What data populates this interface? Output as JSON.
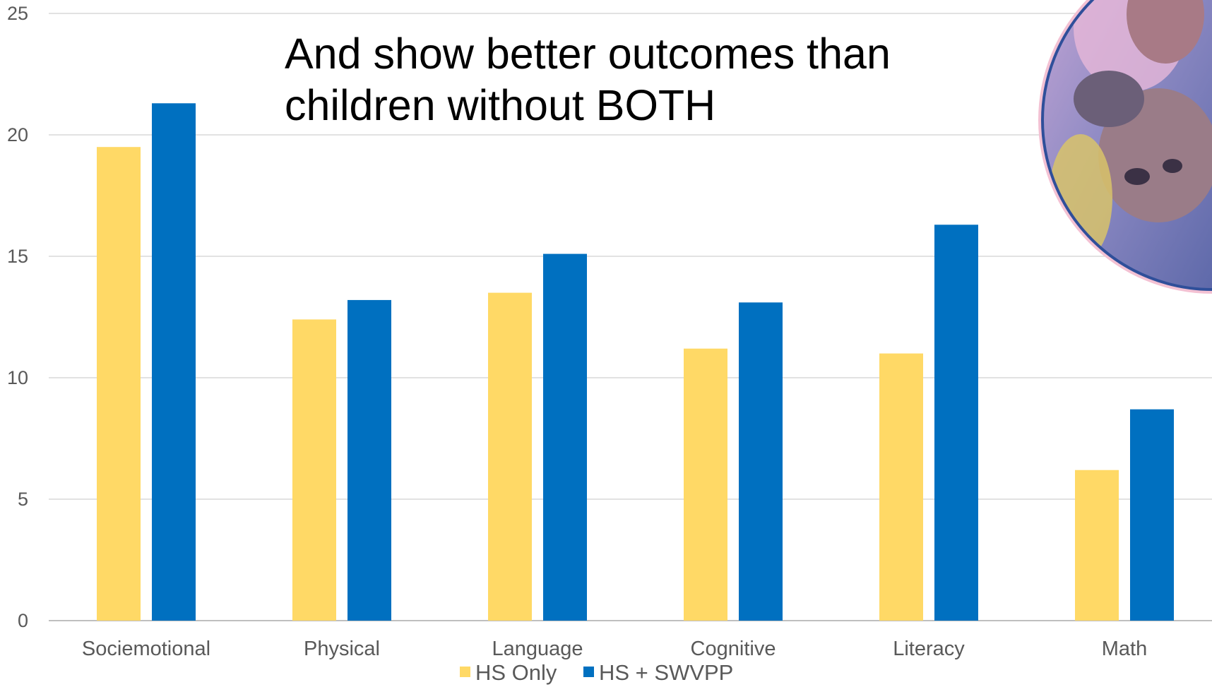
{
  "chart_data": {
    "type": "bar",
    "title": "And show better outcomes than children without BOTH",
    "categories": [
      "Sociemotional",
      "Physical",
      "Language",
      "Cognitive",
      "Literacy",
      "Math"
    ],
    "series": [
      {
        "name": "HS Only",
        "color": "#FFD966",
        "values": [
          19.5,
          12.4,
          13.5,
          11.2,
          11.0,
          6.2
        ]
      },
      {
        "name": "HS + SWVPP",
        "color": "#0070C0",
        "values": [
          21.3,
          13.2,
          15.1,
          13.1,
          16.3,
          8.7
        ]
      }
    ],
    "ylim": [
      0,
      25
    ],
    "yticks": [
      "0",
      "5",
      "10",
      "15",
      "20",
      "25"
    ],
    "xlabel": "",
    "ylabel": "",
    "grid": true,
    "legend_position": "bottom"
  },
  "decoration": {
    "photo": "children-photo-circle",
    "grid_color": "#D9D9D9"
  }
}
